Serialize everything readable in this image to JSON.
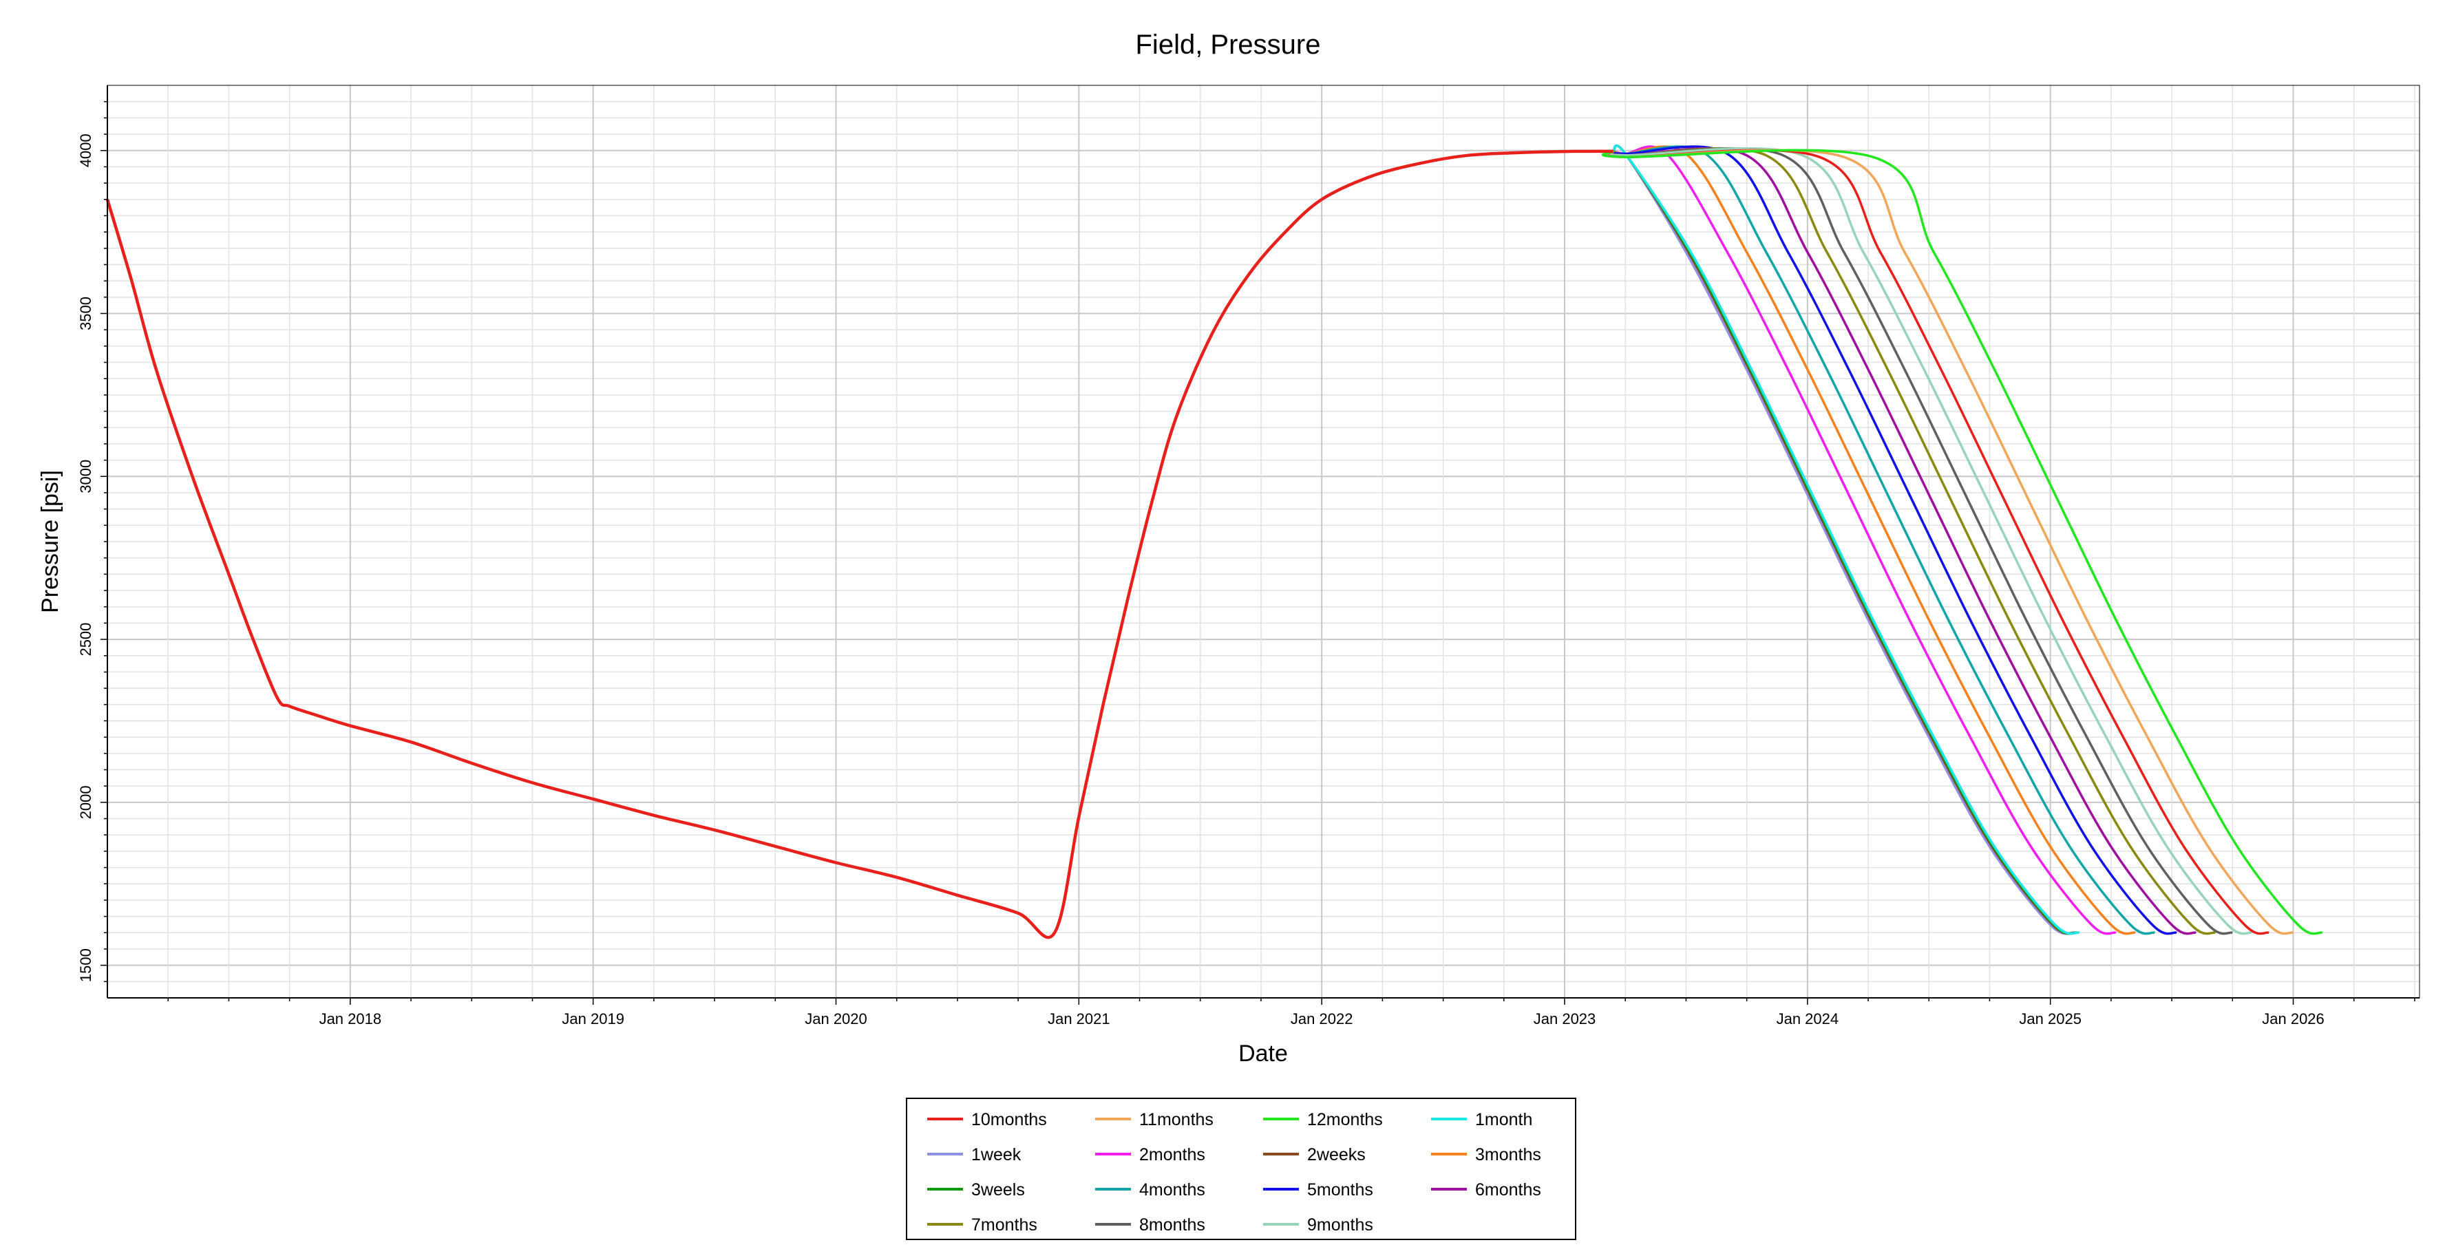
{
  "chart_data": {
    "type": "line",
    "title": "Field, Pressure",
    "xlabel": "Date",
    "ylabel": "Pressure [psi]",
    "xlim": [
      2017.0,
      2026.52
    ],
    "ylim": [
      1400,
      4200
    ],
    "y_ticks": [
      1500,
      2000,
      2500,
      3000,
      3500,
      4000
    ],
    "y_tick_labels": [
      "1500",
      "2000",
      "2500",
      "3000",
      "3500",
      "4000"
    ],
    "x_ticks": [
      2018,
      2019,
      2020,
      2021,
      2022,
      2023,
      2024,
      2025,
      2026
    ],
    "x_tick_labels": [
      "Jan 2018",
      "Jan 2019",
      "Jan 2020",
      "Jan 2021",
      "Jan 2022",
      "Jan 2023",
      "Jan 2024",
      "Jan 2025",
      "Jan 2026"
    ],
    "grid": true,
    "legend_position": "bottom-center",
    "history": {
      "name": "10months",
      "points": [
        [
          2017.0,
          3850
        ],
        [
          2017.1,
          3600
        ],
        [
          2017.2,
          3330
        ],
        [
          2017.35,
          3000
        ],
        [
          2017.5,
          2700
        ],
        [
          2017.6,
          2500
        ],
        [
          2017.7,
          2320
        ],
        [
          2017.75,
          2295
        ],
        [
          2017.85,
          2270
        ],
        [
          2018.0,
          2235
        ],
        [
          2018.25,
          2185
        ],
        [
          2018.5,
          2120
        ],
        [
          2018.75,
          2060
        ],
        [
          2019.0,
          2010
        ],
        [
          2019.25,
          1960
        ],
        [
          2019.5,
          1915
        ],
        [
          2019.75,
          1865
        ],
        [
          2020.0,
          1815
        ],
        [
          2020.25,
          1770
        ],
        [
          2020.5,
          1715
        ],
        [
          2020.75,
          1660
        ],
        [
          2020.9,
          1600
        ],
        [
          2021.0,
          1955
        ],
        [
          2021.1,
          2300
        ],
        [
          2021.2,
          2620
        ],
        [
          2021.3,
          2920
        ],
        [
          2021.4,
          3180
        ],
        [
          2021.55,
          3440
        ],
        [
          2021.7,
          3620
        ],
        [
          2021.85,
          3750
        ],
        [
          2022.0,
          3850
        ],
        [
          2022.2,
          3920
        ],
        [
          2022.4,
          3960
        ],
        [
          2022.6,
          3985
        ],
        [
          2022.8,
          3993
        ],
        [
          2023.0,
          3997
        ],
        [
          2023.2,
          3998
        ]
      ]
    },
    "decline_shape": [
      [
        0,
        1.0
      ],
      [
        0.25,
        0.87
      ],
      [
        0.5,
        0.72
      ],
      [
        0.75,
        0.56
      ],
      [
        1.0,
        0.4
      ],
      [
        1.25,
        0.25
      ],
      [
        1.5,
        0.11
      ],
      [
        1.75,
        0.01
      ],
      [
        1.85,
        0.0
      ]
    ],
    "decline_top": 4000,
    "decline_bottom": 1600,
    "series": [
      {
        "name": "10months",
        "color": "#e8201c",
        "start": 2024.05,
        "plateau": 3980
      },
      {
        "name": "11months",
        "color": "#f2a65a",
        "start": 2024.15,
        "plateau": 3980
      },
      {
        "name": "12months",
        "color": "#22e61f",
        "start": 2024.27,
        "plateau": 3980
      },
      {
        "name": "1month",
        "color": "#1fe6e6",
        "start": 2023.27,
        "plateau": 3990
      },
      {
        "name": "1week",
        "color": "#8f8fe6",
        "start": 2023.25,
        "plateau": 3990
      },
      {
        "name": "2months",
        "color": "#f01ff0",
        "start": 2023.42,
        "plateau": 3990
      },
      {
        "name": "2weeks",
        "color": "#8a4a1c",
        "start": 2023.26,
        "plateau": 3990
      },
      {
        "name": "3months",
        "color": "#f5821f",
        "start": 2023.5,
        "plateau": 3990
      },
      {
        "name": "3weels",
        "color": "#0a9a0a",
        "start": 2023.265,
        "plateau": 3990
      },
      {
        "name": "4months",
        "color": "#12a6a6",
        "start": 2023.58,
        "plateau": 3990
      },
      {
        "name": "5months",
        "color": "#1212e6",
        "start": 2023.67,
        "plateau": 3990
      },
      {
        "name": "6months",
        "color": "#a010a0",
        "start": 2023.75,
        "plateau": 3985
      },
      {
        "name": "7months",
        "color": "#8a8a12",
        "start": 2023.83,
        "plateau": 3985
      },
      {
        "name": "8months",
        "color": "#606060",
        "start": 2023.9,
        "plateau": 3985
      },
      {
        "name": "9months",
        "color": "#98d4b8",
        "start": 2023.98,
        "plateau": 3985
      }
    ],
    "legend_entries": [
      "10months",
      "11months",
      "12months",
      "1month",
      "1week",
      "2months",
      "2weeks",
      "3months",
      "3weels",
      "4months",
      "5months",
      "6months",
      "7months",
      "8months",
      "9months"
    ]
  }
}
